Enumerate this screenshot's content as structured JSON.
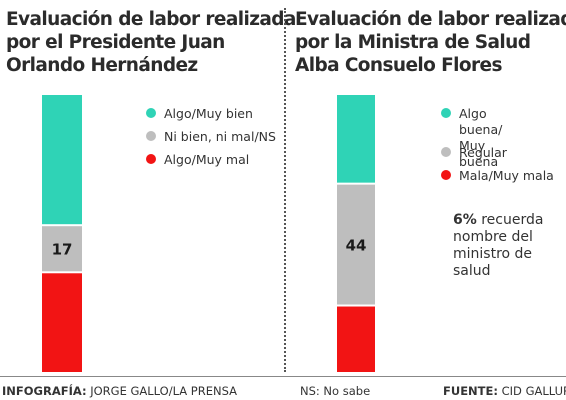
{
  "chart_data": [
    {
      "type": "bar",
      "stacked": true,
      "title": [
        "Evaluación de labor realizada",
        "por el Presidente Juan",
        "Orlando Hernández"
      ],
      "series": [
        {
          "name": "Algo/Muy bien",
          "value": 47,
          "color": "#2fd3b6"
        },
        {
          "name": "Ni bien, ni mal/NS",
          "value": 17,
          "color": "#bebebe",
          "label": "17"
        },
        {
          "name": "Algo/Muy mal",
          "value": 36,
          "color": "#f21414"
        }
      ],
      "ylim": [
        0,
        100
      ]
    },
    {
      "type": "bar",
      "stacked": true,
      "title": [
        "Evaluación de labor realizada",
        "por la Ministra de Salud",
        "Alba Consuelo Flores"
      ],
      "series": [
        {
          "name": "Algo buena/\nMuy buena",
          "value": 32,
          "color": "#2fd3b6"
        },
        {
          "name": "Regular",
          "value": 44,
          "color": "#bebebe",
          "label": "44"
        },
        {
          "name": "Mala/Muy mala",
          "value": 24,
          "color": "#f21414"
        }
      ],
      "ylim": [
        0,
        100
      ],
      "note": {
        "bold": "6%",
        "lines": [
          "recuerda",
          "nombre del",
          "ministro de",
          "salud"
        ]
      }
    }
  ],
  "footer": {
    "infografia_label": "INFOGRAFÍA:",
    "infografia_value": "JORGE GALLO/LA PRENSA",
    "ns_note": "NS: No sabe",
    "fuente_label": "FUENTE:",
    "fuente_value": "CID GALLUP"
  }
}
